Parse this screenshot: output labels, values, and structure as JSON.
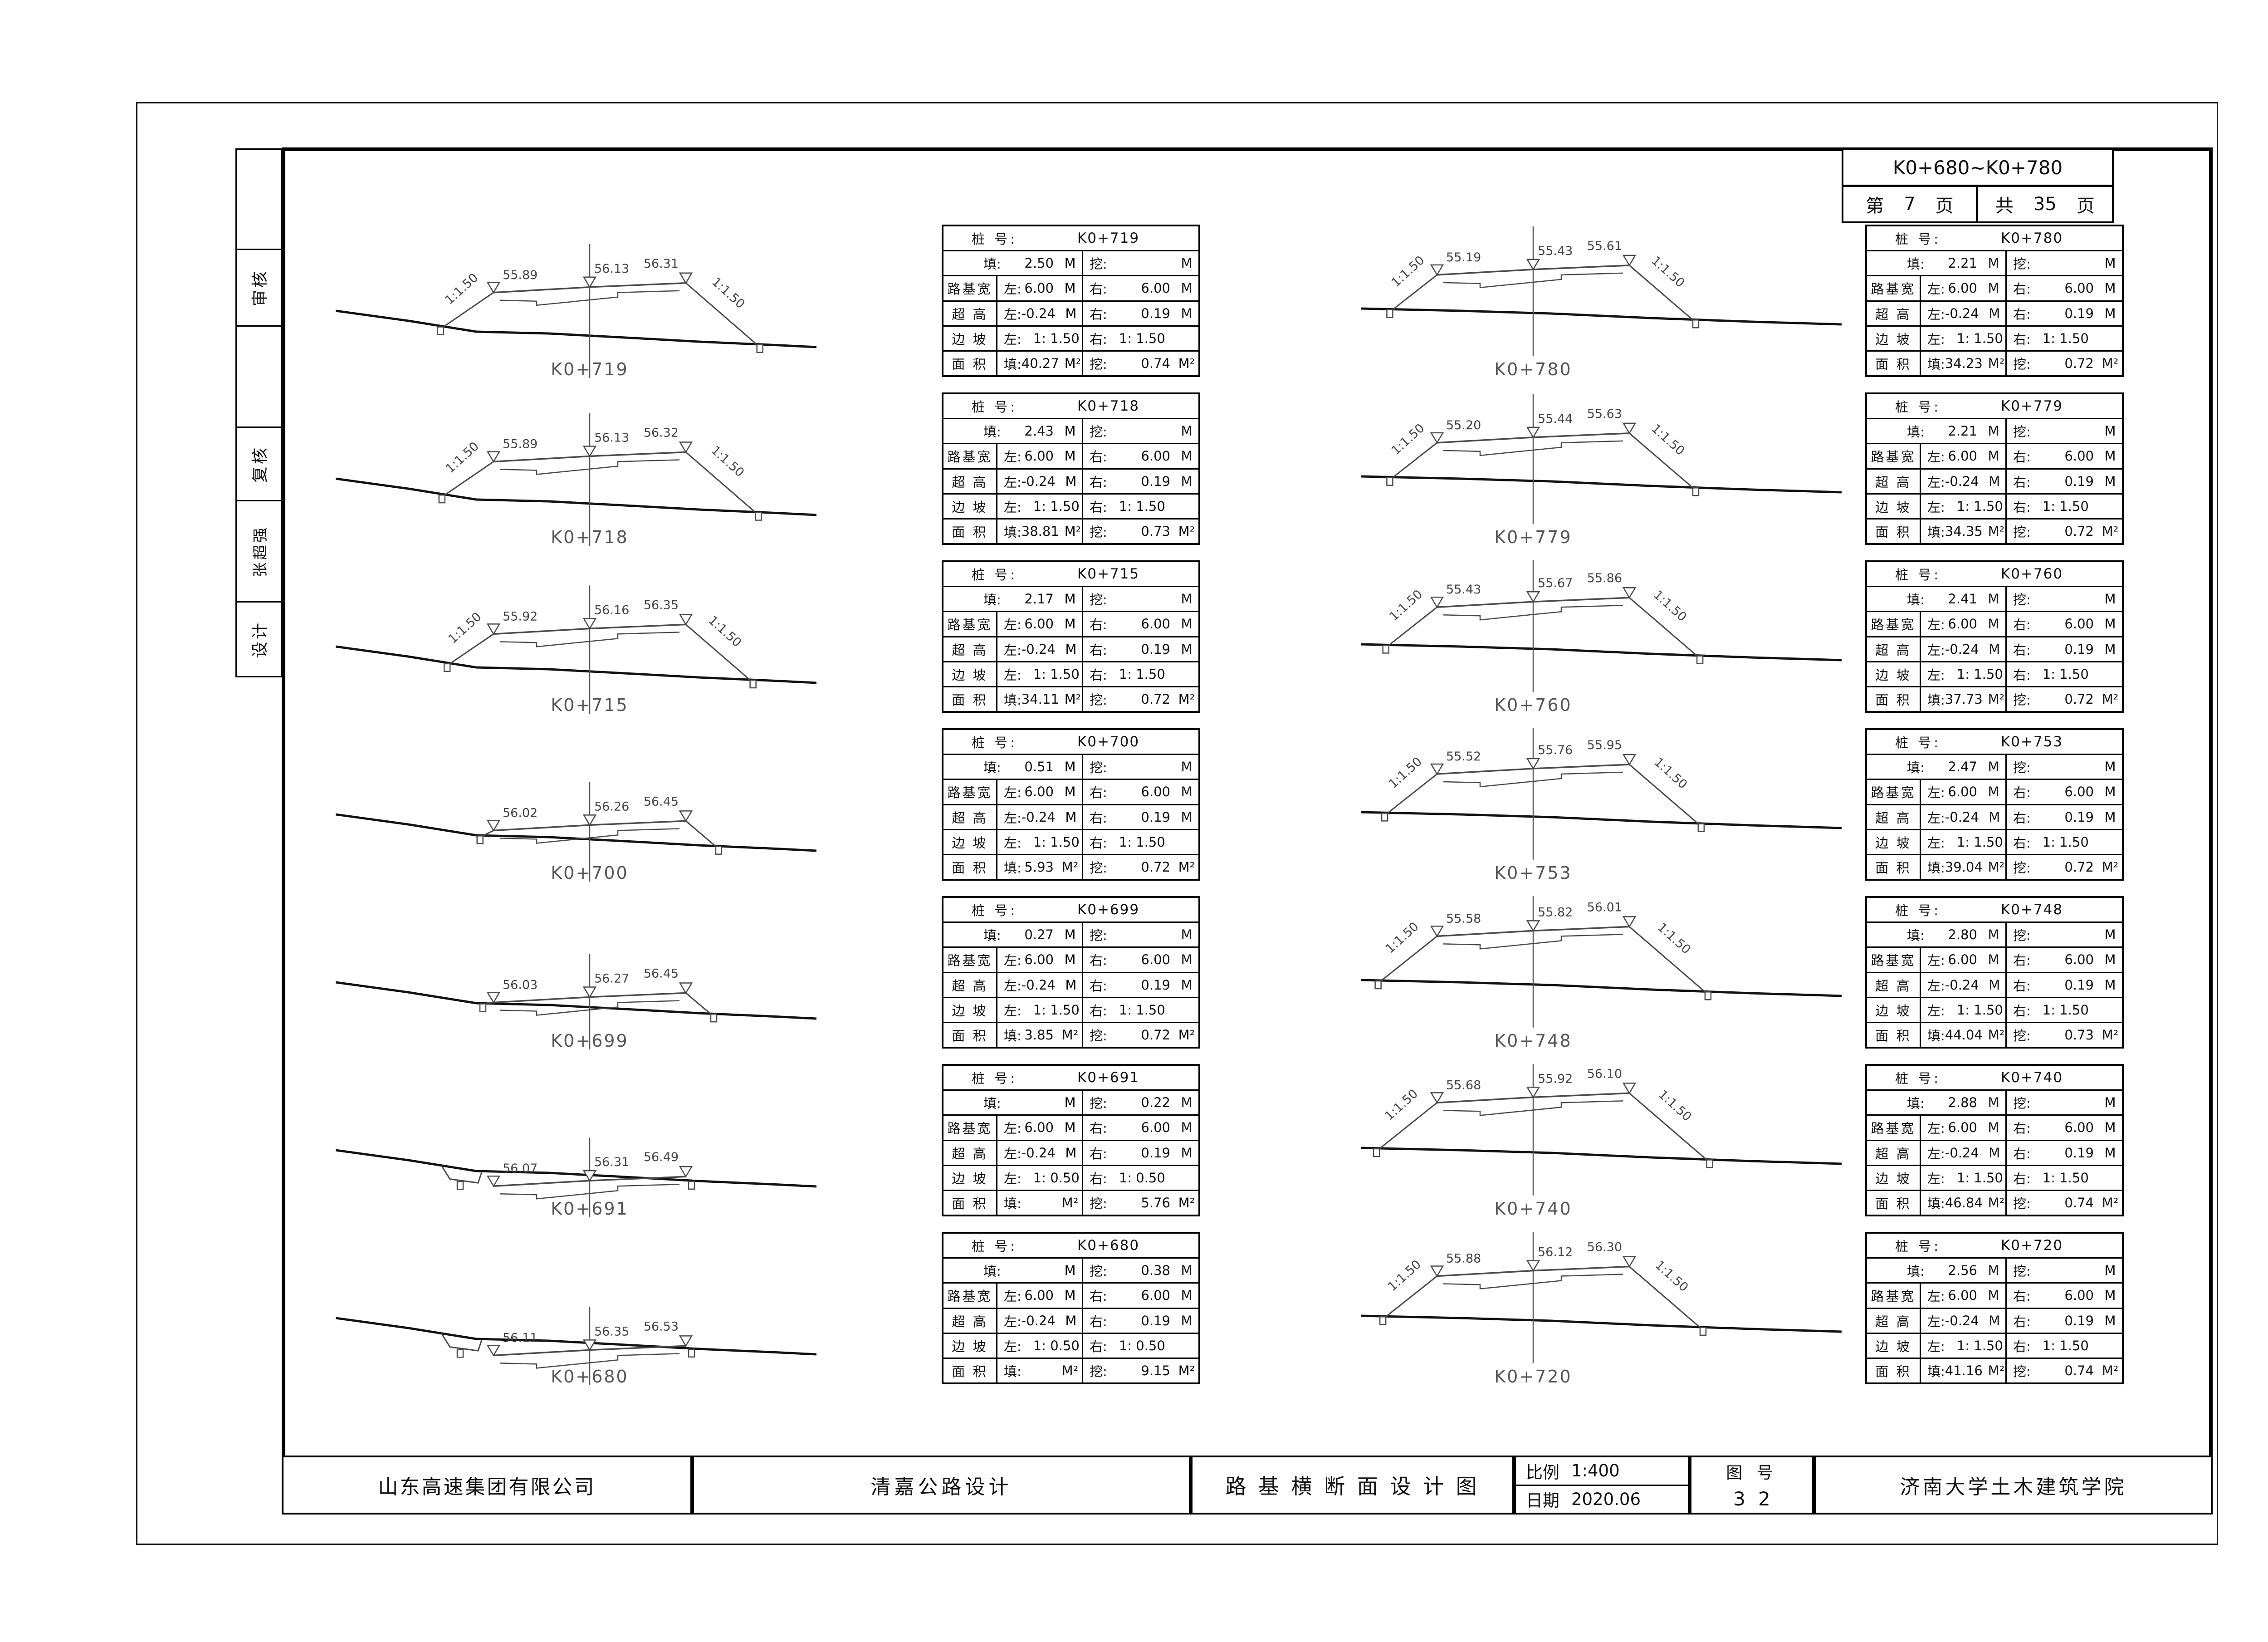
{
  "header": {
    "range": "K0+680~K0+780",
    "page_prefix": "第",
    "page_number": "7",
    "page_suffix": "页",
    "total_prefix": "共",
    "total_number": "35",
    "total_suffix": "页"
  },
  "sidebar": {
    "cells": [
      "",
      "审核",
      "",
      "复核",
      "张超强",
      "设计"
    ]
  },
  "labels": {
    "station": "桩 号:",
    "fill": "填:",
    "excavate": "挖:",
    "subgrade_width": "路基宽",
    "superelevation": "超 高",
    "side_slope": "边 坡",
    "area": "面 积",
    "left": "左:",
    "right": "右:",
    "meter": "M",
    "square_meter": "M²"
  },
  "title_block": {
    "company": "山东高速集团有限公司",
    "project": "清嘉公路设计",
    "drawing_title": "路 基 横 断 面 设 计 图",
    "scale_label": "比例",
    "scale_value": "1:400",
    "date_label": "日期",
    "date_value": "2020.06",
    "figure_label": "图 号",
    "figure_number": "32",
    "institute": "济南大学土木建筑学院"
  },
  "sections": {
    "left": [
      {
        "station": "K0+719",
        "fill_depth": "2.50",
        "cut_depth": "",
        "width_left": "6.00",
        "width_right": "6.00",
        "superelev_left": "-0.24",
        "superelev_right": "0.19",
        "slope_left": "1: 1.50",
        "slope_right": "1: 1.50",
        "area_fill": "40.27",
        "area_cut": "0.74",
        "elevations": [
          "55.89",
          "56.13",
          "56.31"
        ],
        "slope_label": "1:1.50",
        "profile": "fill",
        "height": 2.5
      },
      {
        "station": "K0+718",
        "fill_depth": "2.43",
        "cut_depth": "",
        "width_left": "6.00",
        "width_right": "6.00",
        "superelev_left": "-0.24",
        "superelev_right": "0.19",
        "slope_left": "1: 1.50",
        "slope_right": "1: 1.50",
        "area_fill": "38.81",
        "area_cut": "0.73",
        "elevations": [
          "55.89",
          "56.13",
          "56.32"
        ],
        "slope_label": "1:1.50",
        "profile": "fill",
        "height": 2.43
      },
      {
        "station": "K0+715",
        "fill_depth": "2.17",
        "cut_depth": "",
        "width_left": "6.00",
        "width_right": "6.00",
        "superelev_left": "-0.24",
        "superelev_right": "0.19",
        "slope_left": "1: 1.50",
        "slope_right": "1: 1.50",
        "area_fill": "34.11",
        "area_cut": "0.72",
        "elevations": [
          "55.92",
          "56.16",
          "56.35"
        ],
        "slope_label": "1:1.50",
        "profile": "fill",
        "height": 2.17
      },
      {
        "station": "K0+700",
        "fill_depth": "0.51",
        "cut_depth": "",
        "width_left": "6.00",
        "width_right": "6.00",
        "superelev_left": "-0.24",
        "superelev_right": "0.19",
        "slope_left": "1: 1.50",
        "slope_right": "1: 1.50",
        "area_fill": "5.93",
        "area_cut": "0.72",
        "elevations": [
          "56.02",
          "56.26",
          "56.45"
        ],
        "slope_label": "",
        "profile": "low",
        "height": 0.51
      },
      {
        "station": "K0+699",
        "fill_depth": "0.27",
        "cut_depth": "",
        "width_left": "6.00",
        "width_right": "6.00",
        "superelev_left": "-0.24",
        "superelev_right": "0.19",
        "slope_left": "1: 1.50",
        "slope_right": "1: 1.50",
        "area_fill": "3.85",
        "area_cut": "0.72",
        "elevations": [
          "56.03",
          "56.27",
          "56.45"
        ],
        "slope_label": "",
        "profile": "low",
        "height": 0.27
      },
      {
        "station": "K0+691",
        "fill_depth": "",
        "cut_depth": "0.22",
        "width_left": "6.00",
        "width_right": "6.00",
        "superelev_left": "-0.24",
        "superelev_right": "0.19",
        "slope_left": "1: 0.50",
        "slope_right": "1: 0.50",
        "area_fill": "",
        "area_cut": "5.76",
        "elevations": [
          "56.07",
          "56.31",
          "56.49"
        ],
        "slope_label": "",
        "profile": "cut",
        "height": 0.22
      },
      {
        "station": "K0+680",
        "fill_depth": "",
        "cut_depth": "0.38",
        "width_left": "6.00",
        "width_right": "6.00",
        "superelev_left": "-0.24",
        "superelev_right": "0.19",
        "slope_left": "1: 0.50",
        "slope_right": "1: 0.50",
        "area_fill": "",
        "area_cut": "9.15",
        "elevations": [
          "56.11",
          "56.35",
          "56.53"
        ],
        "slope_label": "",
        "profile": "cut",
        "height": 0.38
      }
    ],
    "right": [
      {
        "station": "K0+780",
        "fill_depth": "2.21",
        "cut_depth": "",
        "width_left": "6.00",
        "width_right": "6.00",
        "superelev_left": "-0.24",
        "superelev_right": "0.19",
        "slope_left": "1: 1.50",
        "slope_right": "1: 1.50",
        "area_fill": "34.23",
        "area_cut": "0.72",
        "elevations": [
          "55.19",
          "55.43",
          "55.61"
        ],
        "slope_label": "1:1.50",
        "profile": "fill",
        "height": 2.21
      },
      {
        "station": "K0+779",
        "fill_depth": "2.21",
        "cut_depth": "",
        "width_left": "6.00",
        "width_right": "6.00",
        "superelev_left": "-0.24",
        "superelev_right": "0.19",
        "slope_left": "1: 1.50",
        "slope_right": "1: 1.50",
        "area_fill": "34.35",
        "area_cut": "0.72",
        "elevations": [
          "55.20",
          "55.44",
          "55.63"
        ],
        "slope_label": "1:1.50",
        "profile": "fill",
        "height": 2.21
      },
      {
        "station": "K0+760",
        "fill_depth": "2.41",
        "cut_depth": "",
        "width_left": "6.00",
        "width_right": "6.00",
        "superelev_left": "-0.24",
        "superelev_right": "0.19",
        "slope_left": "1: 1.50",
        "slope_right": "1: 1.50",
        "area_fill": "37.73",
        "area_cut": "0.72",
        "elevations": [
          "55.43",
          "55.67",
          "55.86"
        ],
        "slope_label": "1:1.50",
        "profile": "fill",
        "height": 2.41
      },
      {
        "station": "K0+753",
        "fill_depth": "2.47",
        "cut_depth": "",
        "width_left": "6.00",
        "width_right": "6.00",
        "superelev_left": "-0.24",
        "superelev_right": "0.19",
        "slope_left": "1: 1.50",
        "slope_right": "1: 1.50",
        "area_fill": "39.04",
        "area_cut": "0.72",
        "elevations": [
          "55.52",
          "55.76",
          "55.95"
        ],
        "slope_label": "1:1.50",
        "profile": "fill",
        "height": 2.47
      },
      {
        "station": "K0+748",
        "fill_depth": "2.80",
        "cut_depth": "",
        "width_left": "6.00",
        "width_right": "6.00",
        "superelev_left": "-0.24",
        "superelev_right": "0.19",
        "slope_left": "1: 1.50",
        "slope_right": "1: 1.50",
        "area_fill": "44.04",
        "area_cut": "0.73",
        "elevations": [
          "55.58",
          "55.82",
          "56.01"
        ],
        "slope_label": "1:1.50",
        "profile": "fill",
        "height": 2.8
      },
      {
        "station": "K0+740",
        "fill_depth": "2.88",
        "cut_depth": "",
        "width_left": "6.00",
        "width_right": "6.00",
        "superelev_left": "-0.24",
        "superelev_right": "0.19",
        "slope_left": "1: 1.50",
        "slope_right": "1: 1.50",
        "area_fill": "46.84",
        "area_cut": "0.74",
        "elevations": [
          "55.68",
          "55.92",
          "56.10"
        ],
        "slope_label": "1:1.50",
        "profile": "fill",
        "height": 2.88
      },
      {
        "station": "K0+720",
        "fill_depth": "2.56",
        "cut_depth": "",
        "width_left": "6.00",
        "width_right": "6.00",
        "superelev_left": "-0.24",
        "superelev_right": "0.19",
        "slope_left": "1: 1.50",
        "slope_right": "1: 1.50",
        "area_fill": "41.16",
        "area_cut": "0.74",
        "elevations": [
          "55.88",
          "56.12",
          "56.30"
        ],
        "slope_label": "1:1.50",
        "profile": "fill",
        "height": 2.56
      }
    ]
  }
}
